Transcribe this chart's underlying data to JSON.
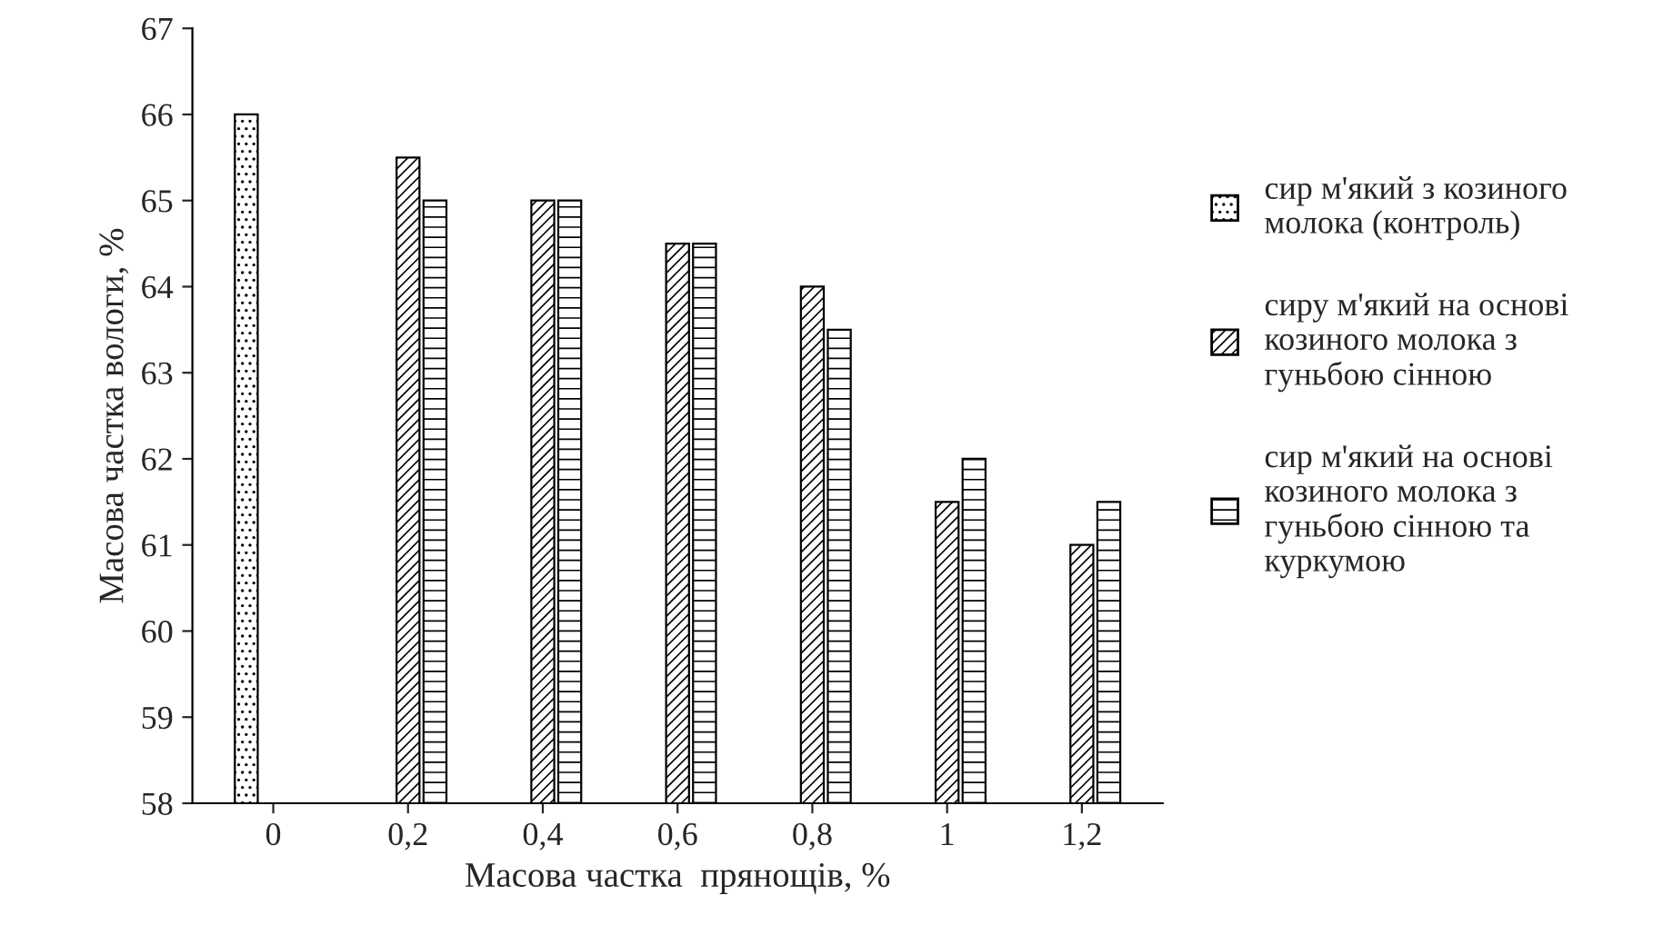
{
  "chart_data": {
    "type": "bar",
    "xlabel": "Масова частка  прянощів, %",
    "ylabel": "Масова частка вологи, %",
    "categories": [
      "0",
      "0,2",
      "0,4",
      "0,6",
      "0,8",
      "1",
      "1,2"
    ],
    "series": [
      {
        "name": "сир м'який з козиного молока (контроль)",
        "color": "#000000",
        "values": [
          66,
          null,
          null,
          null,
          null,
          null,
          null
        ]
      },
      {
        "name": "сиру м'який на основі козиного молока з гуньбою сінною",
        "color": "#000000",
        "values": [
          null,
          65.5,
          65,
          64.5,
          64,
          61.5,
          61
        ]
      },
      {
        "name": "сир м'який на основі козиного молока з гуньбою сінною та куркумою",
        "color": "#000000",
        "values": [
          null,
          65,
          65,
          64.5,
          63.5,
          62,
          61.5
        ]
      }
    ],
    "ylim": [
      58,
      67
    ],
    "yticks": [
      58,
      59,
      60,
      61,
      62,
      63,
      64,
      65,
      66,
      67
    ],
    "grid": false,
    "legend": "right"
  }
}
